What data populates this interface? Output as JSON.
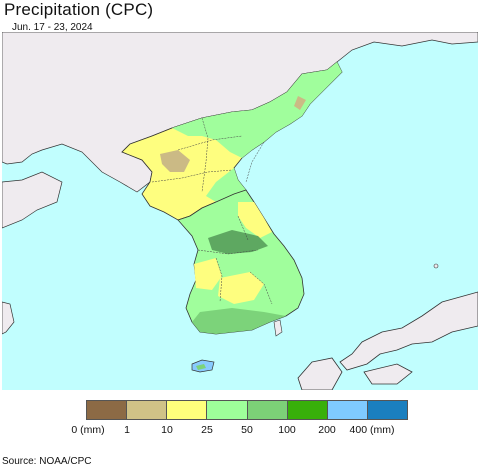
{
  "header": {
    "title": "Precipitation (CPC)",
    "date_range": "Jun. 17 - 23, 2024"
  },
  "map": {
    "ocean_color": "#c1fefe",
    "land_color": "#efebef",
    "border_color": "#222222",
    "regions": {
      "north_dry_color": "#cbba85",
      "light_yellow_color": "#fefe7f",
      "light_green_color": "#a0fe9c",
      "mid_green_color": "#7cd37a",
      "dark_green_color": "#5ea861",
      "blue_color": "#88cbfe"
    }
  },
  "legend": {
    "swatches": [
      {
        "color": "#8c6a45"
      },
      {
        "color": "#d0c287"
      },
      {
        "color": "#ffff7c"
      },
      {
        "color": "#9eff9a"
      },
      {
        "color": "#7cd177"
      },
      {
        "color": "#38b00a"
      },
      {
        "color": "#7fcbff"
      },
      {
        "color": "#1a7fbf"
      }
    ],
    "labels": [
      "0 (mm)",
      "1",
      "10",
      "25",
      "50",
      "100",
      "200",
      "400 (mm)"
    ]
  },
  "footer": {
    "source": "Source: NOAA/CPC"
  }
}
